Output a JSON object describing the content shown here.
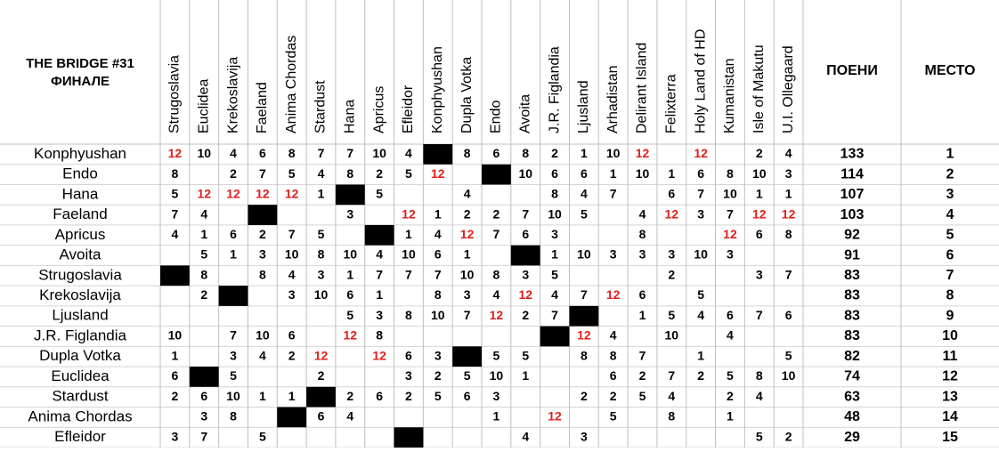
{
  "header": {
    "title_lines": [
      "THE BRIDGE #31",
      "ФИНАЛЕ"
    ],
    "points": "ПОЕНИ",
    "place": "МЕСТО"
  },
  "columns": [
    "Strugoslavia",
    "Euclidea",
    "Krekoslavija",
    "Faeland",
    "Anima Chordas",
    "Stardust",
    "Hana",
    "Apricus",
    "Efleidor",
    "Konphyushan",
    "Dupla Votka",
    "Endo",
    "Avoita",
    "J.R. Figlandia",
    "Ljusland",
    "Arhadistan",
    "Delirant Island",
    "Felixterra",
    "Holy Land of HD",
    "Kumanistan",
    "Isle of Makutu",
    "U.I. Ollegaard"
  ],
  "rows": [
    {
      "country": "Konphyushan",
      "cells": [
        12,
        10,
        4,
        6,
        8,
        7,
        7,
        10,
        4,
        null,
        8,
        6,
        8,
        2,
        1,
        10,
        12,
        null,
        12,
        null,
        2,
        4
      ],
      "points": 133,
      "place": 1
    },
    {
      "country": "Endo",
      "cells": [
        8,
        null,
        2,
        7,
        5,
        4,
        8,
        2,
        5,
        12,
        null,
        null,
        10,
        6,
        6,
        1,
        10,
        1,
        6,
        8,
        10,
        3
      ],
      "points": 114,
      "place": 2
    },
    {
      "country": "Hana",
      "cells": [
        5,
        12,
        12,
        12,
        12,
        1,
        null,
        5,
        null,
        null,
        4,
        null,
        null,
        8,
        4,
        7,
        null,
        6,
        7,
        10,
        1,
        1
      ],
      "points": 107,
      "place": 3
    },
    {
      "country": "Faeland",
      "cells": [
        7,
        4,
        null,
        null,
        null,
        null,
        3,
        null,
        12,
        1,
        2,
        2,
        7,
        10,
        5,
        null,
        4,
        12,
        3,
        7,
        12,
        12
      ],
      "points": 103,
      "place": 4
    },
    {
      "country": "Apricus",
      "cells": [
        4,
        1,
        6,
        2,
        7,
        5,
        null,
        null,
        1,
        4,
        12,
        7,
        6,
        3,
        null,
        null,
        8,
        null,
        null,
        12,
        6,
        8
      ],
      "points": 92,
      "place": 5
    },
    {
      "country": "Avoita",
      "cells": [
        null,
        5,
        1,
        3,
        10,
        8,
        10,
        4,
        10,
        6,
        1,
        null,
        null,
        1,
        10,
        3,
        3,
        3,
        10,
        3,
        null,
        null
      ],
      "points": 91,
      "place": 6
    },
    {
      "country": "Strugoslavia",
      "cells": [
        null,
        8,
        null,
        8,
        4,
        3,
        1,
        7,
        7,
        7,
        10,
        8,
        3,
        5,
        null,
        null,
        null,
        2,
        null,
        null,
        3,
        7
      ],
      "points": 83,
      "place": 7
    },
    {
      "country": "Krekoslavija",
      "cells": [
        null,
        2,
        null,
        null,
        3,
        10,
        6,
        1,
        null,
        8,
        3,
        4,
        12,
        4,
        7,
        12,
        6,
        null,
        5,
        null,
        null,
        null
      ],
      "points": 83,
      "place": 8
    },
    {
      "country": "Ljusland",
      "cells": [
        null,
        null,
        null,
        null,
        null,
        null,
        5,
        3,
        8,
        10,
        7,
        12,
        2,
        7,
        null,
        null,
        1,
        5,
        4,
        6,
        7,
        6
      ],
      "points": 83,
      "place": 9
    },
    {
      "country": "J.R. Figlandia",
      "cells": [
        10,
        null,
        7,
        10,
        6,
        null,
        12,
        8,
        null,
        null,
        null,
        null,
        null,
        null,
        12,
        4,
        null,
        10,
        null,
        4,
        null,
        null
      ],
      "points": 83,
      "place": 10
    },
    {
      "country": "Dupla Votka",
      "cells": [
        1,
        null,
        3,
        4,
        2,
        12,
        null,
        12,
        6,
        3,
        null,
        5,
        5,
        null,
        8,
        8,
        7,
        null,
        1,
        null,
        null,
        5
      ],
      "points": 82,
      "place": 11
    },
    {
      "country": "Euclidea",
      "cells": [
        6,
        null,
        5,
        null,
        null,
        2,
        null,
        null,
        3,
        2,
        5,
        10,
        1,
        null,
        null,
        6,
        2,
        7,
        2,
        5,
        8,
        10
      ],
      "points": 74,
      "place": 12
    },
    {
      "country": "Stardust",
      "cells": [
        2,
        6,
        10,
        1,
        1,
        null,
        2,
        6,
        2,
        5,
        6,
        3,
        null,
        null,
        2,
        2,
        5,
        4,
        null,
        2,
        4,
        null
      ],
      "points": 63,
      "place": 13
    },
    {
      "country": "Anima Chordas",
      "cells": [
        null,
        3,
        8,
        null,
        null,
        6,
        4,
        null,
        null,
        null,
        null,
        1,
        null,
        12,
        null,
        5,
        null,
        8,
        null,
        1,
        null,
        null
      ],
      "points": 48,
      "place": 14
    },
    {
      "country": "Efleidor",
      "cells": [
        3,
        7,
        null,
        5,
        null,
        null,
        null,
        null,
        null,
        null,
        null,
        null,
        4,
        null,
        3,
        null,
        null,
        null,
        null,
        null,
        5,
        2
      ],
      "points": 29,
      "place": 15
    }
  ]
}
